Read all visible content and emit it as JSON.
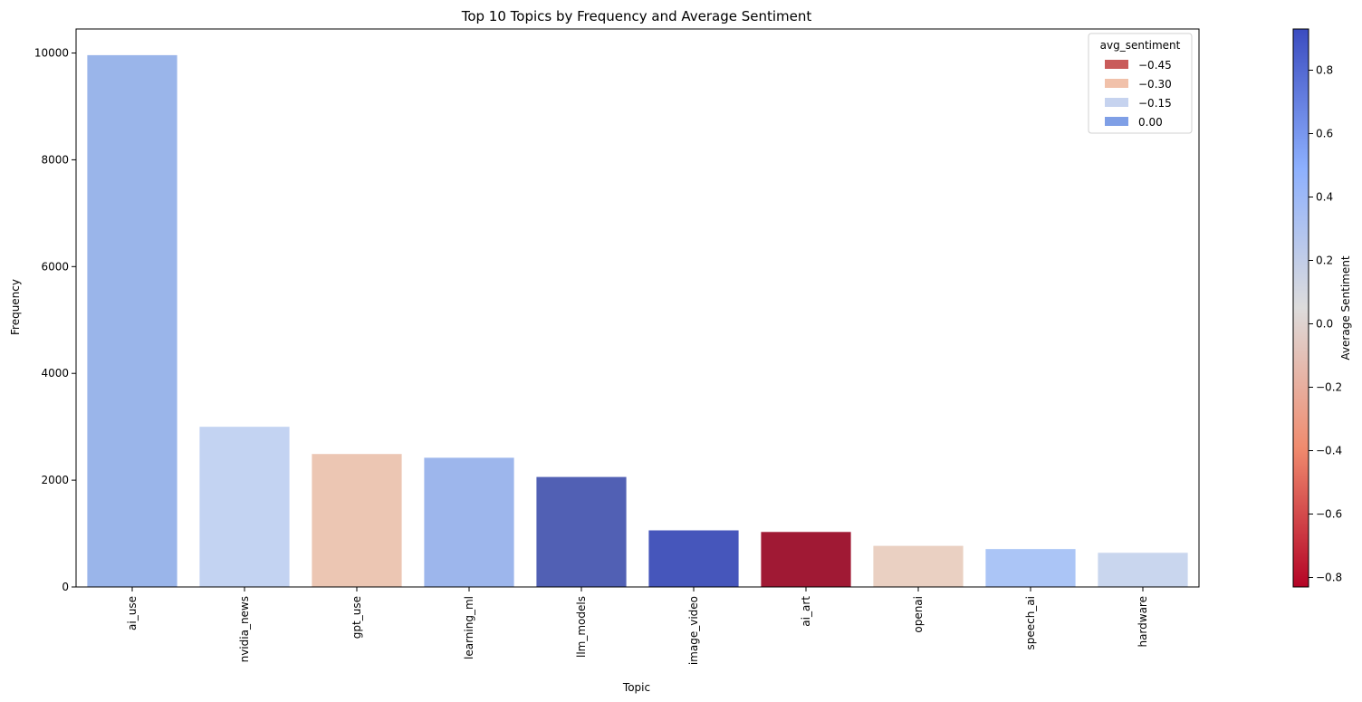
{
  "chart_data": {
    "type": "bar",
    "title": "Top 10 Topics by Frequency and Average Sentiment",
    "xlabel": "Topic",
    "ylabel": "Frequency",
    "ylim": [
      0,
      10450
    ],
    "y_ticks": [
      0,
      2000,
      4000,
      6000,
      8000,
      10000
    ],
    "categories": [
      "ai_use",
      "nvidia_news",
      "gpt_use",
      "learning_ml",
      "llm_models",
      "image_video",
      "ai_art",
      "openai",
      "speech_ai",
      "hardware"
    ],
    "values": [
      9960,
      3000,
      2490,
      2420,
      2060,
      1060,
      1030,
      770,
      710,
      640
    ],
    "bar_colors": [
      "#9ab5ea",
      "#c3d3f2",
      "#ecc6b3",
      "#9db6ec",
      "#5160b4",
      "#4656bb",
      "#a01934",
      "#ead0c2",
      "#abc5f6",
      "#c9d6ee"
    ],
    "legend": {
      "title": "avg_sentiment",
      "placement": "upper right",
      "entries": [
        {
          "label": "−0.45",
          "color": "#c95b5a"
        },
        {
          "label": "−0.30",
          "color": "#f1c1aa"
        },
        {
          "label": "−0.15",
          "color": "#c6d3ef"
        },
        {
          "label": "0.00",
          "color": "#7f9fe6"
        }
      ]
    },
    "colorbar": {
      "label": "Average Sentiment",
      "range": [
        -0.83,
        0.93
      ],
      "ticks": [
        "0.8",
        "0.6",
        "0.4",
        "0.2",
        "0.0",
        "−0.2",
        "−0.4",
        "−0.6",
        "−0.8"
      ],
      "tick_values": [
        0.8,
        0.6,
        0.4,
        0.2,
        0.0,
        -0.2,
        -0.4,
        -0.6,
        -0.8
      ],
      "colormap": "coolwarm_r",
      "stops": [
        "#b40426",
        "#f08b6e",
        "#dddcdc",
        "#8db0fe",
        "#3b4cc0"
      ]
    }
  }
}
